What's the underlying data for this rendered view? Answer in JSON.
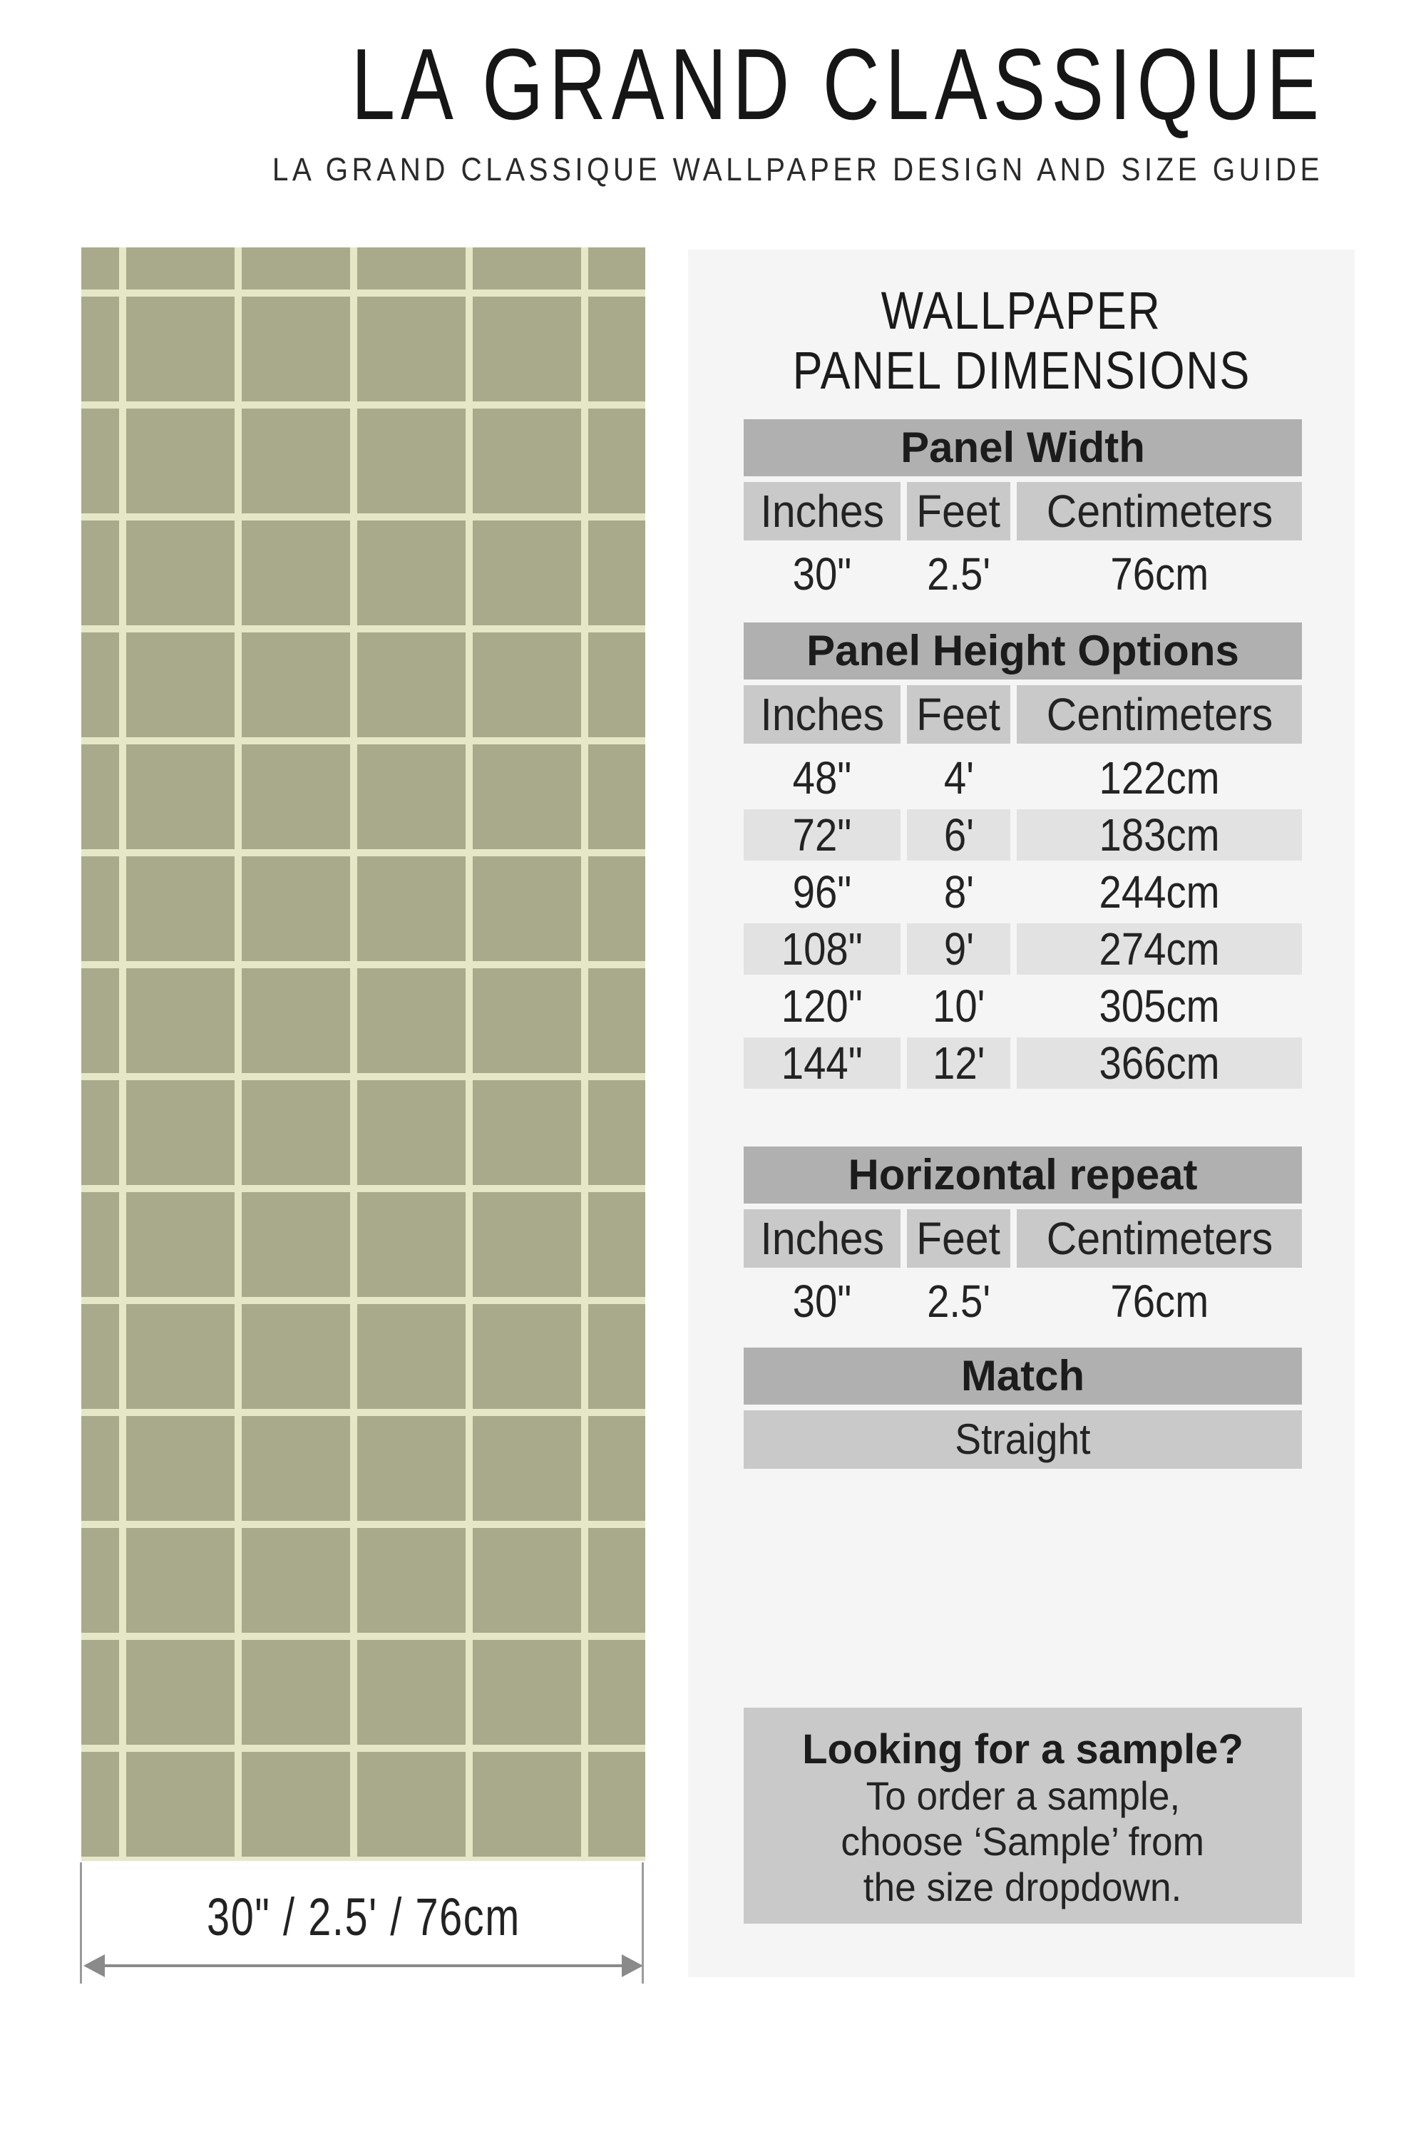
{
  "header": {
    "brand": "LA GRAND CLASSIQUE",
    "subtitle": "LA GRAND CLASSIQUE WALLPAPER DESIGN AND SIZE GUIDE"
  },
  "swatch": {
    "pattern_name": "grid-check-wallpaper",
    "base_color": "#a9aa8c",
    "line_color": "#e6e7c6",
    "width_label": "30\" / 2.5' / 76cm"
  },
  "panel": {
    "bg_color": "#f5f5f5",
    "bar_color": "#b0b0b0",
    "cell_color": "#c9c9c9",
    "alt_row_color": "#e2e2e2",
    "title_line1": "WALLPAPER",
    "title_line2": "PANEL DIMENSIONS",
    "width_section": {
      "header": "Panel Width",
      "columns": [
        "Inches",
        "Feet",
        "Centimeters"
      ],
      "values": [
        "30\"",
        "2.5'",
        "76cm"
      ]
    },
    "height_section": {
      "header": "Panel Height Options",
      "columns": [
        "Inches",
        "Feet",
        "Centimeters"
      ],
      "rows": [
        [
          "48\"",
          "4'",
          "122cm"
        ],
        [
          "72\"",
          "6'",
          "183cm"
        ],
        [
          "96\"",
          "8'",
          "244cm"
        ],
        [
          "108\"",
          "9'",
          "274cm"
        ],
        [
          "120\"",
          "10'",
          "305cm"
        ],
        [
          "144\"",
          "12'",
          "366cm"
        ]
      ]
    },
    "repeat_section": {
      "header": "Horizontal repeat",
      "columns": [
        "Inches",
        "Feet",
        "Centimeters"
      ],
      "values": [
        "30\"",
        "2.5'",
        "76cm"
      ]
    },
    "match_section": {
      "header": "Match",
      "value": "Straight"
    },
    "sample_box": {
      "title": "Looking for a sample?",
      "line1": "To order a sample,",
      "line2": "choose ‘Sample’ from",
      "line3": "the size dropdown."
    }
  },
  "annotation": {
    "arrow_color": "#8a8a8a"
  }
}
